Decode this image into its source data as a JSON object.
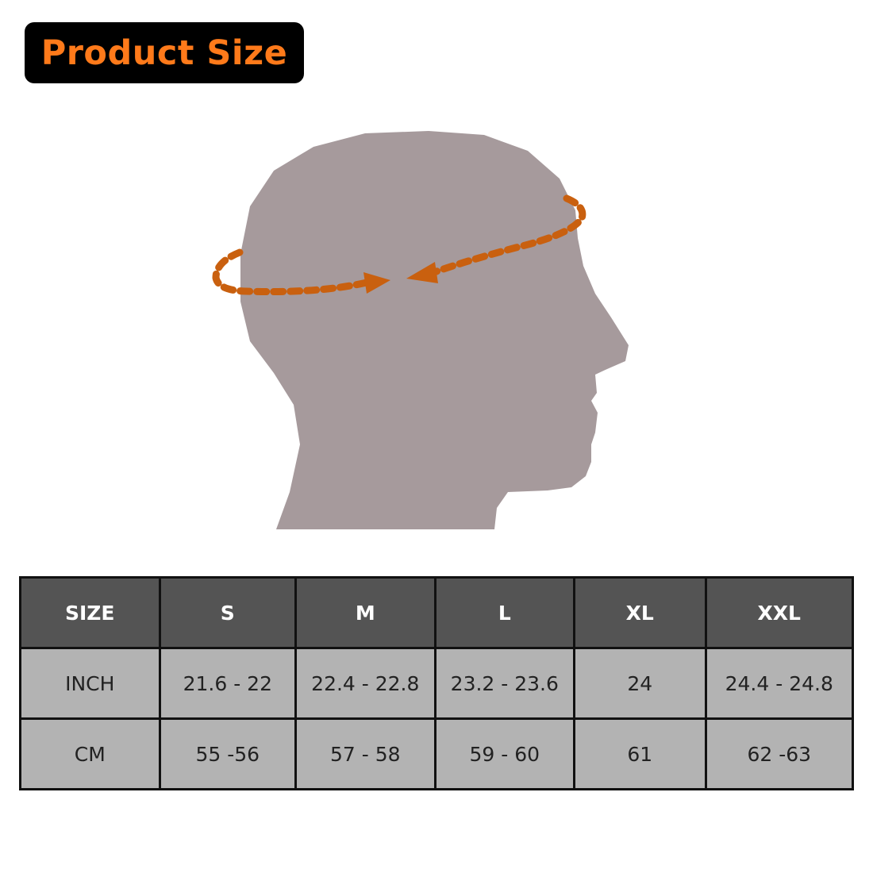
{
  "title": "Product Size",
  "colors": {
    "title_text": "#ff7a1a",
    "head": "#a69a9c",
    "measure_line": "#c9600f",
    "header_bg": "#545454",
    "cell_bg": "#b3b3b3"
  },
  "illustration": "head-circumference-icon",
  "table": {
    "headers": [
      "SIZE",
      "S",
      "M",
      "L",
      "XL",
      "XXL"
    ],
    "rows": [
      [
        "INCH",
        "21.6 - 22",
        "22.4 - 22.8",
        "23.2 - 23.6",
        "24",
        "24.4 - 24.8"
      ],
      [
        "CM",
        "55 -56",
        "57 - 58",
        "59 - 60",
        "61",
        "62 -63"
      ]
    ]
  }
}
